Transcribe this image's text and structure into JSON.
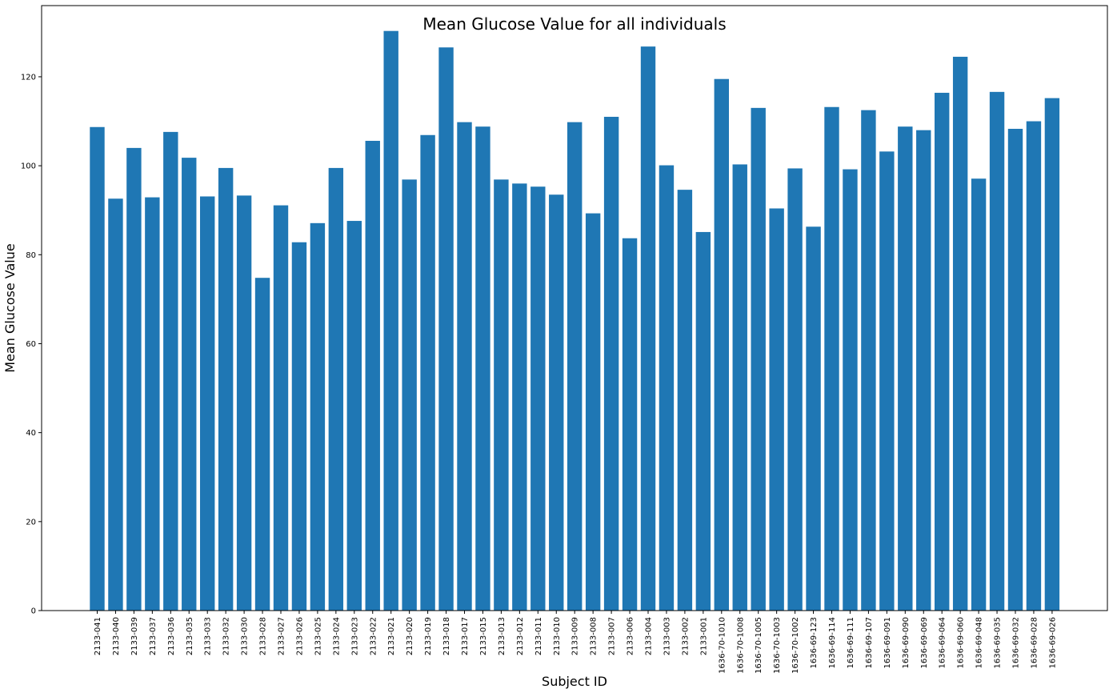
{
  "chart_data": {
    "type": "bar",
    "title": "Mean Glucose Value for all individuals",
    "xlabel": "Subject ID",
    "ylabel": "Mean Glucose Value",
    "ylim": [
      0,
      136
    ],
    "yticks": [
      0,
      20,
      40,
      60,
      80,
      100,
      120
    ],
    "grid": false,
    "bar_color": "#1f77b4",
    "categories": [
      "2133-041",
      "2133-040",
      "2133-039",
      "2133-037",
      "2133-036",
      "2133-035",
      "2133-033",
      "2133-032",
      "2133-030",
      "2133-028",
      "2133-027",
      "2133-026",
      "2133-025",
      "2133-024",
      "2133-023",
      "2133-022",
      "2133-021",
      "2133-020",
      "2133-019",
      "2133-018",
      "2133-017",
      "2133-015",
      "2133-013",
      "2133-012",
      "2133-011",
      "2133-010",
      "2133-009",
      "2133-008",
      "2133-007",
      "2133-006",
      "2133-004",
      "2133-003",
      "2133-002",
      "2133-001",
      "1636-70-1010",
      "1636-70-1008",
      "1636-70-1005",
      "1636-70-1003",
      "1636-70-1002",
      "1636-69-123",
      "1636-69-114",
      "1636-69-111",
      "1636-69-107",
      "1636-69-091",
      "1636-69-090",
      "1636-69-069",
      "1636-69-064",
      "1636-69-060",
      "1636-69-048",
      "1636-69-035",
      "1636-69-032",
      "1636-69-028",
      "1636-69-026"
    ],
    "values": [
      108.7,
      92.6,
      104.0,
      92.9,
      107.6,
      101.8,
      93.1,
      99.5,
      93.3,
      74.8,
      91.1,
      82.8,
      87.1,
      99.5,
      87.6,
      105.6,
      130.3,
      96.9,
      106.9,
      126.6,
      109.8,
      108.8,
      96.9,
      96.0,
      95.3,
      93.5,
      109.8,
      89.3,
      111.0,
      83.7,
      126.8,
      100.1,
      94.6,
      85.1,
      119.5,
      100.3,
      113.0,
      90.4,
      99.4,
      86.3,
      113.2,
      99.2,
      112.5,
      103.2,
      108.8,
      108.0,
      116.4,
      124.5,
      97.1,
      116.6,
      108.3,
      110.0,
      115.2
    ]
  }
}
